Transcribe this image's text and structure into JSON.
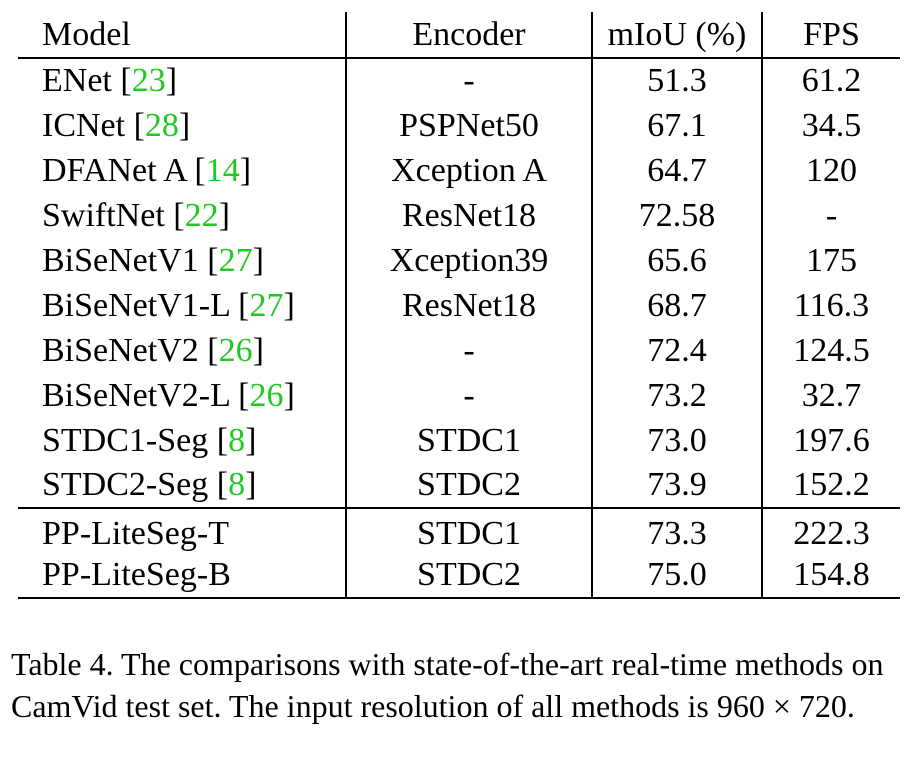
{
  "table": {
    "headers": {
      "model": "Model",
      "encoder": "Encoder",
      "miou": "mIoU (%)",
      "fps": "FPS"
    },
    "baseline_rows": [
      {
        "model": "ENet",
        "ref": "23",
        "encoder": "-",
        "miou": "51.3",
        "fps": "61.2"
      },
      {
        "model": "ICNet",
        "ref": "28",
        "encoder": "PSPNet50",
        "miou": "67.1",
        "fps": "34.5"
      },
      {
        "model": "DFANet A",
        "ref": "14",
        "encoder": "Xception A",
        "miou": "64.7",
        "fps": "120"
      },
      {
        "model": "SwiftNet",
        "ref": "22",
        "encoder": "ResNet18",
        "miou": "72.58",
        "fps": "-"
      },
      {
        "model": "BiSeNetV1",
        "ref": "27",
        "encoder": "Xception39",
        "miou": "65.6",
        "fps": "175"
      },
      {
        "model": "BiSeNetV1-L",
        "ref": "27",
        "encoder": "ResNet18",
        "miou": "68.7",
        "fps": "116.3"
      },
      {
        "model": "BiSeNetV2",
        "ref": "26",
        "encoder": "-",
        "miou": "72.4",
        "fps": "124.5"
      },
      {
        "model": "BiSeNetV2-L",
        "ref": "26",
        "encoder": "-",
        "miou": "73.2",
        "fps": "32.7"
      },
      {
        "model": "STDC1-Seg",
        "ref": "8",
        "encoder": "STDC1",
        "miou": "73.0",
        "fps": "197.6"
      },
      {
        "model": "STDC2-Seg",
        "ref": "8",
        "encoder": "STDC2",
        "miou": "73.9",
        "fps": "152.2"
      }
    ],
    "ours_rows": [
      {
        "model": "PP-LiteSeg-T",
        "encoder": "STDC1",
        "miou": "73.3",
        "fps": "222.3"
      },
      {
        "model": "PP-LiteSeg-B",
        "encoder": "STDC2",
        "miou": "75.0",
        "fps": "154.8"
      }
    ]
  },
  "caption": "Table 4. The comparisons with state-of-the-art real-time methods on CamVid test set. The input resolution of all methods is 960 × 720."
}
